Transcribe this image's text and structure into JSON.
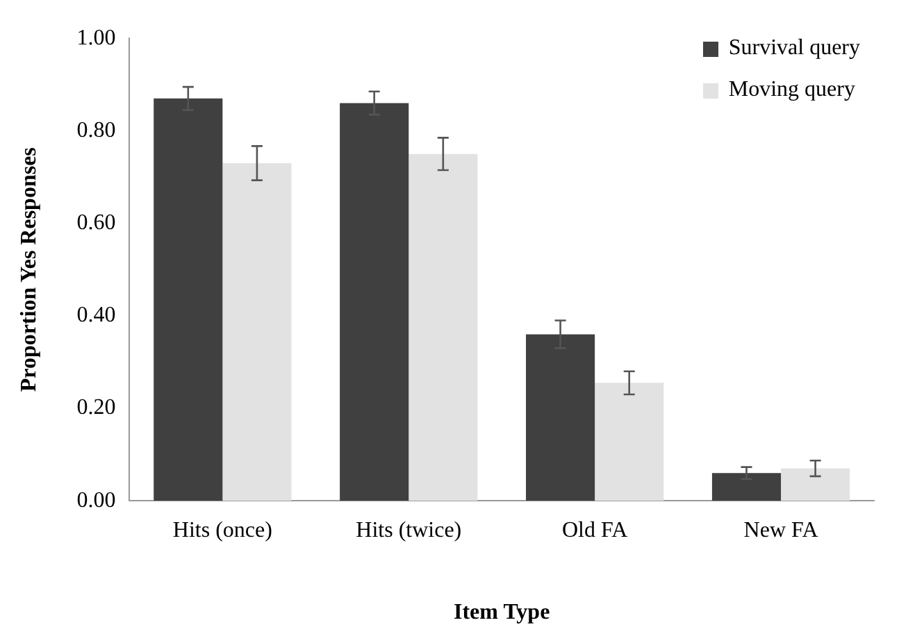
{
  "chart_data": {
    "type": "bar",
    "xlabel": "Item Type",
    "ylabel": "Proportion Yes Responses",
    "categories": [
      "Hits (once)",
      "Hits (twice)",
      "Old FA",
      "New FA"
    ],
    "series": [
      {
        "name": "Survival query",
        "color": "#404040",
        "values": [
          0.87,
          0.86,
          0.36,
          0.06
        ],
        "errors": [
          0.025,
          0.025,
          0.03,
          0.013
        ]
      },
      {
        "name": "Moving query",
        "color": "#e2e2e2",
        "values": [
          0.73,
          0.75,
          0.255,
          0.07
        ],
        "errors": [
          0.037,
          0.035,
          0.025,
          0.017
        ]
      }
    ],
    "ylim": [
      0,
      1
    ],
    "yticks": [
      {
        "value": 0,
        "label": "0.00"
      },
      {
        "value": 0.2,
        "label": "0.20"
      },
      {
        "value": 0.4,
        "label": "0.40"
      },
      {
        "value": 0.6,
        "label": "0.60"
      },
      {
        "value": 0.8,
        "label": "0.80"
      },
      {
        "value": 1,
        "label": "1.00"
      }
    ],
    "grid": false,
    "legend": "top right"
  }
}
